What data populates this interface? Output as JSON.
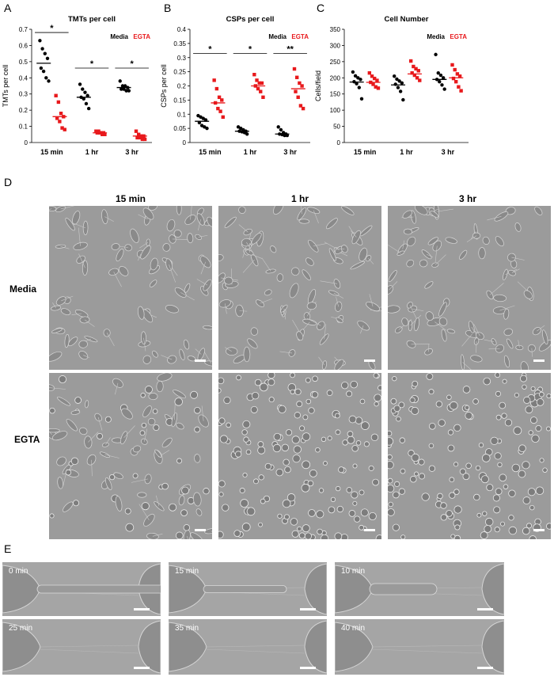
{
  "panels": {
    "a": "A",
    "b": "B",
    "c": "C",
    "d": "D",
    "e": "E"
  },
  "legend": {
    "media": "Media",
    "egta": "EGTA"
  },
  "colors": {
    "media": "#000000",
    "egta": "#e8191c"
  },
  "chart_data": [
    {
      "type": "scatter",
      "title": "TMTs per cell",
      "ylabel": "TMTs per cell",
      "xlabel": "",
      "ylim": [
        0,
        0.7
      ],
      "yticks": [
        "0",
        "0.1",
        "0.2",
        "0.3",
        "0.4",
        "0.5",
        "0.6",
        "0.7"
      ],
      "categories": [
        "15 min",
        "1 hr",
        "3 hr"
      ],
      "legend_position": "top-right",
      "series": [
        {
          "name": "Media",
          "color": "#000000",
          "points": [
            [
              0.63,
              0.58,
              0.55,
              0.52,
              0.46,
              0.44,
              0.4,
              0.38
            ],
            [
              0.36,
              0.33,
              0.31,
              0.29,
              0.28,
              0.27,
              0.24,
              0.21
            ],
            [
              0.38,
              0.35,
              0.35,
              0.34,
              0.33,
              0.33,
              0.32,
              0.32
            ]
          ],
          "medians": [
            0.49,
            0.28,
            0.34
          ]
        },
        {
          "name": "EGTA",
          "color": "#e8191c",
          "points": [
            [
              0.29,
              0.25,
              0.18,
              0.16,
              0.15,
              0.13,
              0.09,
              0.08
            ],
            [
              0.07,
              0.07,
              0.06,
              0.06,
              0.06,
              0.06,
              0.05,
              0.05
            ],
            [
              0.07,
              0.05,
              0.04,
              0.04,
              0.03,
              0.03,
              0.02,
              0.02
            ]
          ],
          "medians": [
            0.16,
            0.06,
            0.04
          ]
        }
      ],
      "significance": [
        {
          "group": 0,
          "label": "*",
          "y": 0.68
        },
        {
          "group": 1,
          "label": "*",
          "y": 0.46
        },
        {
          "group": 2,
          "label": "*",
          "y": 0.46
        }
      ]
    },
    {
      "type": "scatter",
      "title": "CSPs per cell",
      "ylabel": "CSPs per cell",
      "xlabel": "",
      "ylim": [
        0,
        0.4
      ],
      "yticks": [
        "0",
        "0.05",
        "0.1",
        "0.15",
        "0.2",
        "0.25",
        "0.3",
        "0.35",
        "0.4"
      ],
      "categories": [
        "15 min",
        "1 hr",
        "3 hr"
      ],
      "legend_position": "top-right",
      "series": [
        {
          "name": "Media",
          "color": "#000000",
          "points": [
            [
              0.095,
              0.09,
              0.085,
              0.08,
              0.07,
              0.06,
              0.055,
              0.05
            ],
            [
              0.055,
              0.05,
              0.045,
              0.04,
              0.04,
              0.038,
              0.035,
              0.03
            ],
            [
              0.055,
              0.045,
              0.035,
              0.03,
              0.03,
              0.028,
              0.025,
              0.025
            ]
          ],
          "medians": [
            0.075,
            0.04,
            0.03
          ]
        },
        {
          "name": "EGTA",
          "color": "#e8191c",
          "points": [
            [
              0.22,
              0.19,
              0.16,
              0.15,
              0.14,
              0.12,
              0.11,
              0.09
            ],
            [
              0.24,
              0.22,
              0.21,
              0.21,
              0.2,
              0.19,
              0.18,
              0.16
            ],
            [
              0.26,
              0.23,
              0.21,
              0.2,
              0.18,
              0.16,
              0.13,
              0.12
            ]
          ],
          "medians": [
            0.14,
            0.2,
            0.19
          ]
        }
      ],
      "significance": [
        {
          "group": 0,
          "label": "*",
          "y": 0.315
        },
        {
          "group": 1,
          "label": "*",
          "y": 0.315
        },
        {
          "group": 2,
          "label": "**",
          "y": 0.315
        }
      ]
    },
    {
      "type": "scatter",
      "title": "Cell Number",
      "ylabel": "Cells/field",
      "xlabel": "",
      "ylim": [
        0,
        350
      ],
      "yticks": [
        "0",
        "50",
        "100",
        "150",
        "200",
        "250",
        "300",
        "350"
      ],
      "categories": [
        "15 min",
        "1 hr",
        "3 hr"
      ],
      "legend_position": "top-right",
      "series": [
        {
          "name": "Media",
          "color": "#000000",
          "points": [
            [
              218,
              206,
              200,
              195,
              188,
              182,
              170,
              135
            ],
            [
              205,
              196,
              190,
              184,
              180,
              170,
              158,
              132
            ],
            [
              272,
              215,
              208,
              200,
              195,
              188,
              178,
              165
            ]
          ],
          "medians": [
            187,
            178,
            195
          ]
        },
        {
          "name": "EGTA",
          "color": "#e8191c",
          "points": [
            [
              215,
              205,
              198,
              192,
              186,
              180,
              172,
              168
            ],
            [
              252,
              235,
              228,
              222,
              215,
              208,
              200,
              192
            ],
            [
              240,
              225,
              212,
              205,
              198,
              188,
              172,
              160
            ]
          ],
          "medians": [
            186,
            212,
            200
          ]
        }
      ],
      "significance": []
    }
  ],
  "micrographs": {
    "columns": [
      "15 min",
      "1 hr",
      "3 hr"
    ],
    "rows": [
      "Media",
      "EGTA"
    ]
  },
  "timelapse": {
    "frames": [
      "0 min",
      "15 min",
      "10 min",
      "25 min",
      "35 min",
      "40 min"
    ]
  }
}
